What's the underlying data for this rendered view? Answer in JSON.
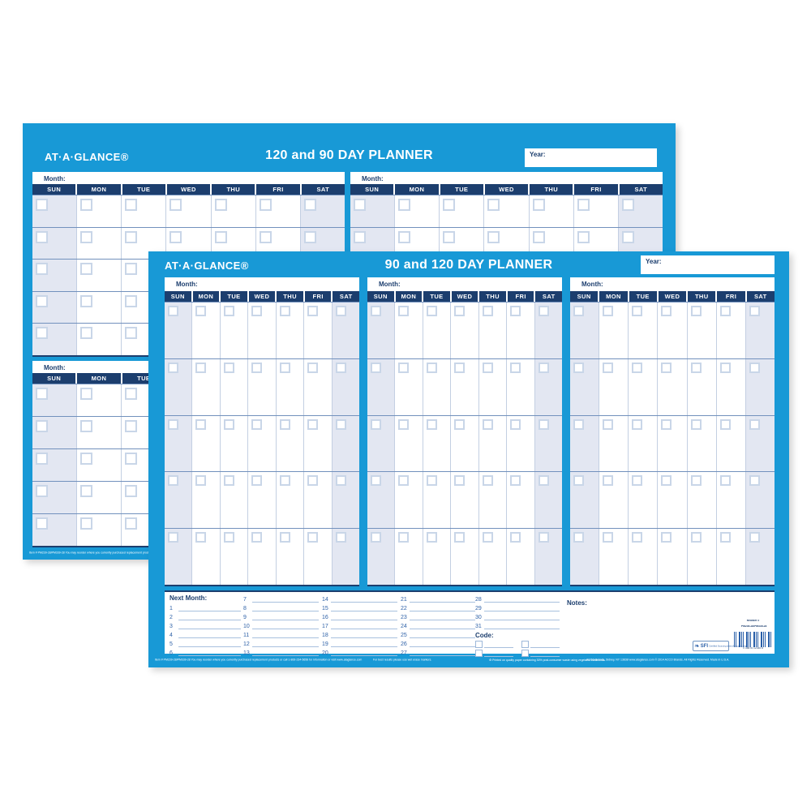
{
  "colors": {
    "planner_blue": "#1899d6",
    "header_navy": "#1c3e6e",
    "weekend_fill": "#e3e7f2",
    "rule_blue": "#a8c0de",
    "number_blue": "#2f62a8",
    "text_white": "#ffffff"
  },
  "day_names": [
    "SUN",
    "MON",
    "TUE",
    "WED",
    "THU",
    "FRI",
    "SAT"
  ],
  "back_planner": {
    "logo": "AT·A·GLANCE®",
    "title": "120 and 90 DAY PLANNER",
    "year_label": "Year:",
    "month_label": "Month:",
    "fine_print_left": "Item # PM239-28/PM339-28   You may reorder where you currently purchased replacement products or call 1-800-234-5656 for information or visit www.ataglance.com"
  },
  "front_planner": {
    "logo": "AT·A·GLANCE®",
    "title": "90 and 120 DAY PLANNER",
    "year_label": "Year:",
    "month_label": "Month:",
    "bottom": {
      "next_month_label": "Next Month:",
      "notes_label": "Notes:",
      "code_label": "Code:",
      "number_columns": [
        [
          "1",
          "2",
          "3",
          "4",
          "5",
          "6"
        ],
        [
          "7",
          "8",
          "9",
          "10",
          "11",
          "12",
          "13"
        ],
        [
          "14",
          "15",
          "16",
          "17",
          "18",
          "19",
          "20"
        ],
        [
          "21",
          "22",
          "23",
          "24",
          "25",
          "26",
          "27"
        ],
        [
          "28",
          "29",
          "30",
          "31"
        ]
      ]
    },
    "barcode": {
      "reorder_label": "Reorder #",
      "reorder_number": "PM239-28/PM339-28",
      "upc_digits": "0 38576 12345 8",
      "sfi_name": "SFI",
      "sfi_text": "Certified Sourcing www.sfiprogram.org"
    },
    "fine_print": {
      "left": "Item # PM239-28/PM339-28   You may reorder where you currently purchased replacement products or call 1-800-234-5656 for information or visit www.ataglance.com",
      "markers": "For best results please use wet erase markers.",
      "recycle": "Printed on quality paper containing 30% post-consumer waste using vegetable based inks.",
      "right": "ACCO Brands, Sidney, NY 13838   www.ataglance.com   © 2014 ACCO Brands. All Rights Reserved.   Made in U.S.A."
    }
  }
}
